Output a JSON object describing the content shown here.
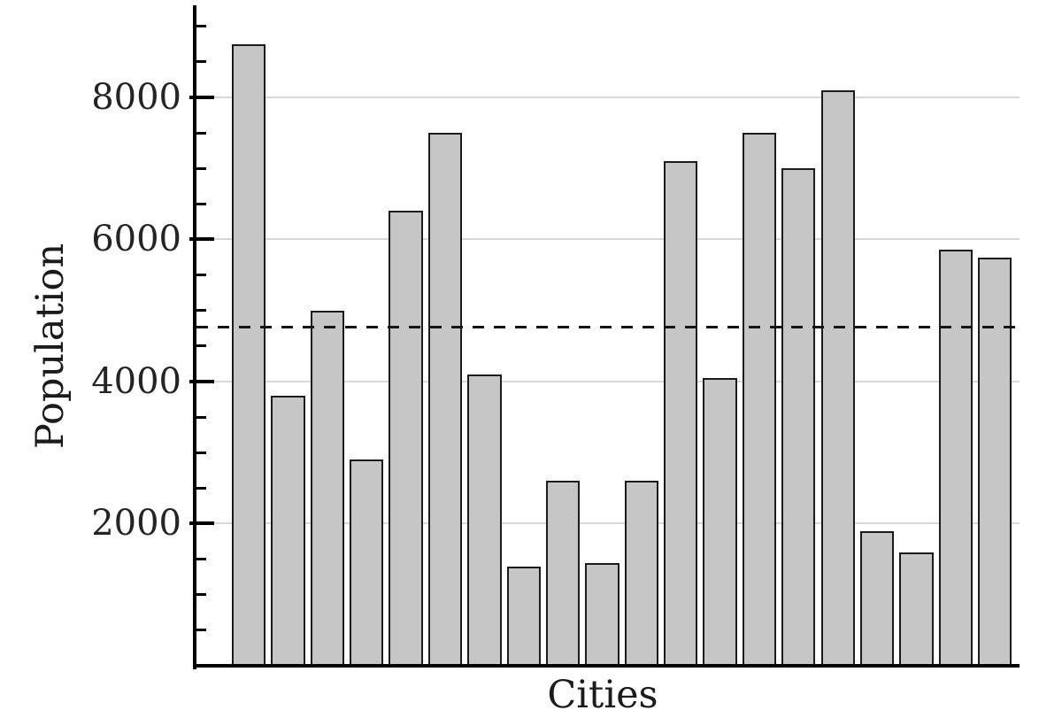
{
  "chart_data": {
    "type": "bar",
    "title": "",
    "xlabel": "Cities",
    "ylabel": "Population",
    "values": [
      8750,
      3800,
      5000,
      2900,
      6400,
      7500,
      4100,
      1400,
      2600,
      1450,
      2600,
      7100,
      4050,
      7500,
      7000,
      8100,
      1900,
      1600,
      5850,
      5750
    ],
    "ylim": [
      0,
      9270
    ],
    "yticks": [
      2000,
      4000,
      6000,
      8000
    ],
    "ytick_labels": [
      "2000",
      "4000",
      "6000",
      "8000"
    ],
    "minor_ytick_step": 500,
    "minor_ytick_max": 9000,
    "grid": "y-major-only",
    "legend": "none",
    "dashed_reference_line": {
      "value": 4767.5,
      "style": "dashed",
      "color": "#151515"
    },
    "colors": {
      "bar_fill": "#c6c6c6",
      "bar_border": "#1c1c1c",
      "grid_color": "#d8d8d8",
      "axis_color": "#000000",
      "text_color": "#242424"
    }
  }
}
